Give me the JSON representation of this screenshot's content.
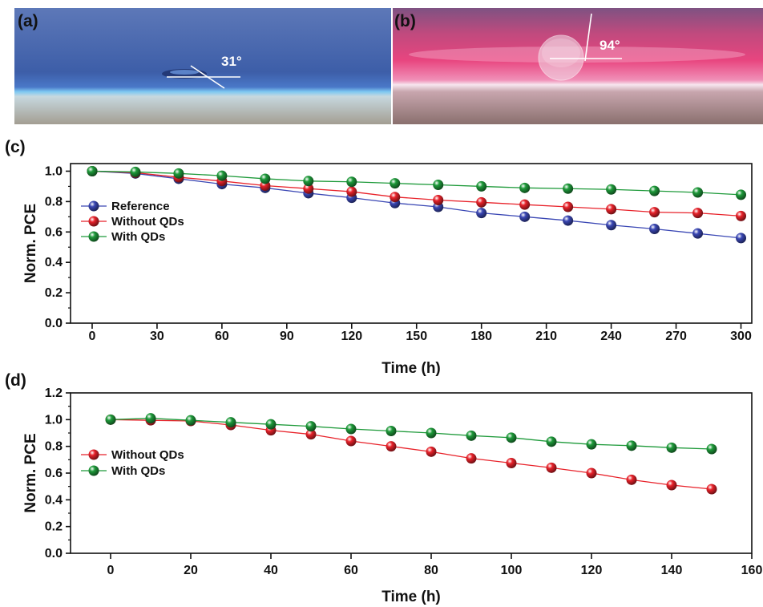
{
  "panels": {
    "a": {
      "label": "(a)",
      "angle": "31°"
    },
    "b": {
      "label": "(b)",
      "angle": "94°"
    },
    "c": {
      "label": "(c)"
    },
    "d": {
      "label": "(d)"
    }
  },
  "colors": {
    "reference": "#3a47b4",
    "without_qds": "#e8222a",
    "with_qds": "#1e9a3a"
  },
  "chart_data": [
    {
      "type": "line",
      "panel": "c",
      "xlabel": "Time (h)",
      "ylabel": "Norm. PCE",
      "xlim": [
        -10,
        305
      ],
      "ylim": [
        0,
        1.05
      ],
      "xticks": [
        0,
        30,
        60,
        90,
        120,
        150,
        180,
        210,
        240,
        270,
        300
      ],
      "yticks": [
        0.0,
        0.2,
        0.4,
        0.6,
        0.8,
        1.0
      ],
      "ytick_labels": [
        "0.0",
        "0.2",
        "0.4",
        "0.6",
        "0.8",
        "1.0"
      ],
      "legend_position": "left",
      "x": [
        0,
        20,
        40,
        60,
        80,
        100,
        120,
        140,
        160,
        180,
        200,
        220,
        240,
        260,
        280,
        300
      ],
      "series": [
        {
          "name": "Reference",
          "color_key": "reference",
          "values": [
            1.0,
            0.985,
            0.95,
            0.915,
            0.89,
            0.855,
            0.825,
            0.79,
            0.765,
            0.725,
            0.7,
            0.675,
            0.645,
            0.62,
            0.59,
            0.56
          ]
        },
        {
          "name": "Without QDs",
          "color_key": "without_qds",
          "values": [
            1.0,
            0.99,
            0.96,
            0.935,
            0.905,
            0.885,
            0.865,
            0.83,
            0.81,
            0.795,
            0.78,
            0.765,
            0.75,
            0.73,
            0.725,
            0.705
          ]
        },
        {
          "name": "With QDs",
          "color_key": "with_qds",
          "values": [
            1.0,
            0.995,
            0.985,
            0.97,
            0.95,
            0.935,
            0.93,
            0.92,
            0.91,
            0.9,
            0.89,
            0.885,
            0.88,
            0.87,
            0.86,
            0.845
          ]
        }
      ]
    },
    {
      "type": "line",
      "panel": "d",
      "xlabel": "Time (h)",
      "ylabel": "Norm. PCE",
      "xlim": [
        -10,
        160
      ],
      "ylim": [
        0,
        1.2
      ],
      "xticks": [
        0,
        20,
        40,
        60,
        80,
        100,
        120,
        140,
        160
      ],
      "yticks": [
        0.0,
        0.2,
        0.4,
        0.6,
        0.8,
        1.0,
        1.2
      ],
      "ytick_labels": [
        "0.0",
        "0.2",
        "0.4",
        "0.6",
        "0.8",
        "1.0",
        "1.2"
      ],
      "legend_position": "left",
      "x": [
        0,
        10,
        20,
        30,
        40,
        50,
        60,
        70,
        80,
        90,
        100,
        110,
        120,
        130,
        140,
        150
      ],
      "series": [
        {
          "name": "Without QDs",
          "color_key": "without_qds",
          "values": [
            1.0,
            0.995,
            0.99,
            0.96,
            0.92,
            0.89,
            0.84,
            0.8,
            0.76,
            0.71,
            0.675,
            0.64,
            0.6,
            0.55,
            0.51,
            0.48
          ]
        },
        {
          "name": "With QDs",
          "color_key": "with_qds",
          "values": [
            1.0,
            1.01,
            0.995,
            0.98,
            0.965,
            0.95,
            0.93,
            0.915,
            0.9,
            0.88,
            0.865,
            0.835,
            0.815,
            0.805,
            0.79,
            0.78
          ]
        }
      ]
    }
  ]
}
